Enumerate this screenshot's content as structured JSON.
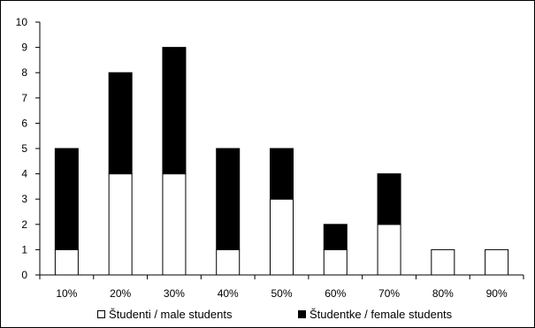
{
  "chart_data": {
    "type": "bar",
    "stacked": true,
    "categories": [
      "10%",
      "20%",
      "30%",
      "40%",
      "50%",
      "60%",
      "70%",
      "80%",
      "90%"
    ],
    "series": [
      {
        "name": "Študenti / male students",
        "values": [
          1,
          4,
          4,
          1,
          3,
          1,
          2,
          1,
          1
        ],
        "color": "#ffffff"
      },
      {
        "name": "Študentke / female students",
        "values": [
          4,
          4,
          5,
          4,
          2,
          1,
          2,
          0,
          0
        ],
        "color": "#000000"
      }
    ],
    "ylim": [
      0,
      10
    ],
    "yticks": [
      "0",
      "1",
      "2",
      "3",
      "4",
      "5",
      "6",
      "7",
      "8",
      "9",
      "10"
    ],
    "grid": false,
    "legend_position": "bottom"
  }
}
